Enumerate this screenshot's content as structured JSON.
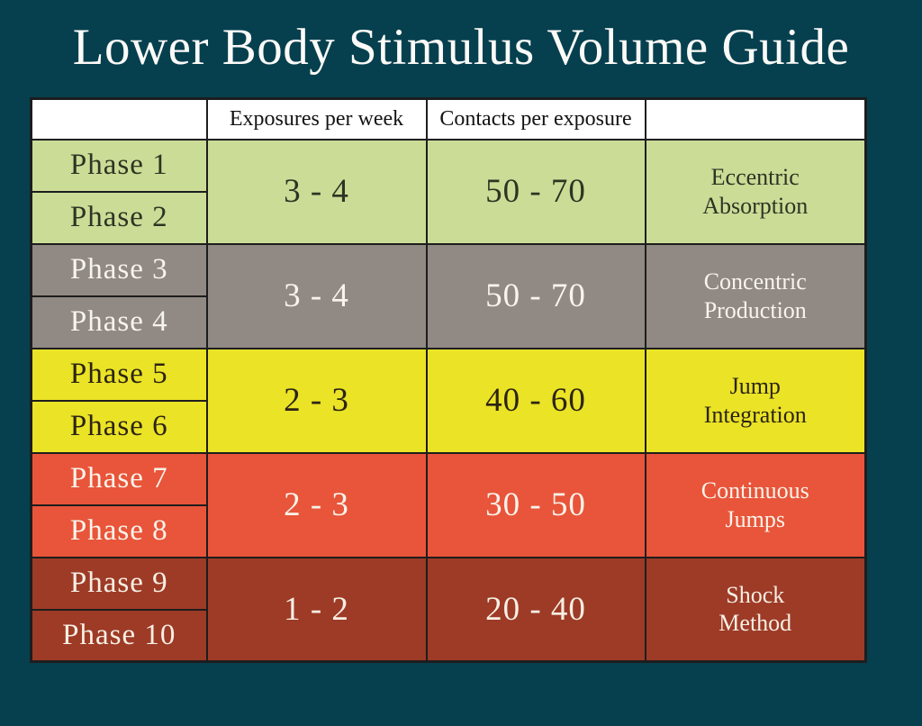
{
  "title": "Lower Body Stimulus Volume Guide",
  "colors": {
    "page_bg": "#06404f",
    "border": "#1d1d1d",
    "header_bg": "#ffffff",
    "header_fg": "#131313",
    "title_fg": "#fbfaf7"
  },
  "table": {
    "headers": [
      "",
      "Exposures per week",
      "Contacts per exposure",
      ""
    ],
    "groups": [
      {
        "phases": [
          "Phase 1",
          "Phase 2"
        ],
        "exposures": "3 - 4",
        "contacts": "50 - 70",
        "category_lines": [
          "Eccentric",
          "Absorption"
        ],
        "bg": "#cbdc97",
        "fg": "#2e3423"
      },
      {
        "phases": [
          "Phase 3",
          "Phase 4"
        ],
        "exposures": "3 - 4",
        "contacts": "50 - 70",
        "category_lines": [
          "Concentric",
          "Production"
        ],
        "bg": "#908984",
        "fg": "#f8f4ed"
      },
      {
        "phases": [
          "Phase 5",
          "Phase 6"
        ],
        "exposures": "2 - 3",
        "contacts": "40 - 60",
        "category_lines": [
          "Jump",
          "Integration"
        ],
        "bg": "#ebe326",
        "fg": "#2b2414"
      },
      {
        "phases": [
          "Phase 7",
          "Phase 8"
        ],
        "exposures": "2 - 3",
        "contacts": "30 - 50",
        "category_lines": [
          "Continuous",
          "Jumps"
        ],
        "bg": "#e8553a",
        "fg": "#f9f3ea"
      },
      {
        "phases": [
          "Phase 9",
          "Phase 10"
        ],
        "exposures": "1 - 2",
        "contacts": "20 - 40",
        "category_lines": [
          "Shock",
          "Method"
        ],
        "bg": "#9d3b27",
        "fg": "#f7efe3"
      }
    ]
  },
  "chart_data": {
    "type": "table",
    "title": "Lower Body Stimulus Volume Guide",
    "columns": [
      "",
      "Exposures per week",
      "Contacts per exposure",
      ""
    ],
    "rows": [
      [
        "Phase 1",
        "3 - 4",
        "50 - 70",
        "Eccentric Absorption"
      ],
      [
        "Phase 2",
        "3 - 4",
        "50 - 70",
        "Eccentric Absorption"
      ],
      [
        "Phase 3",
        "3 - 4",
        "50 - 70",
        "Concentric Production"
      ],
      [
        "Phase 4",
        "3 - 4",
        "50 - 70",
        "Concentric Production"
      ],
      [
        "Phase 5",
        "2 - 3",
        "40 - 60",
        "Jump Integration"
      ],
      [
        "Phase 6",
        "2 - 3",
        "40 - 60",
        "Jump Integration"
      ],
      [
        "Phase 7",
        "2 - 3",
        "30 - 50",
        "Continuous Jumps"
      ],
      [
        "Phase 8",
        "2 - 3",
        "30 - 50",
        "Continuous Jumps"
      ],
      [
        "Phase 9",
        "1 - 2",
        "20 - 40",
        "Shock Method"
      ],
      [
        "Phase 10",
        "1 - 2",
        "20 - 40",
        "Shock Method"
      ]
    ]
  }
}
